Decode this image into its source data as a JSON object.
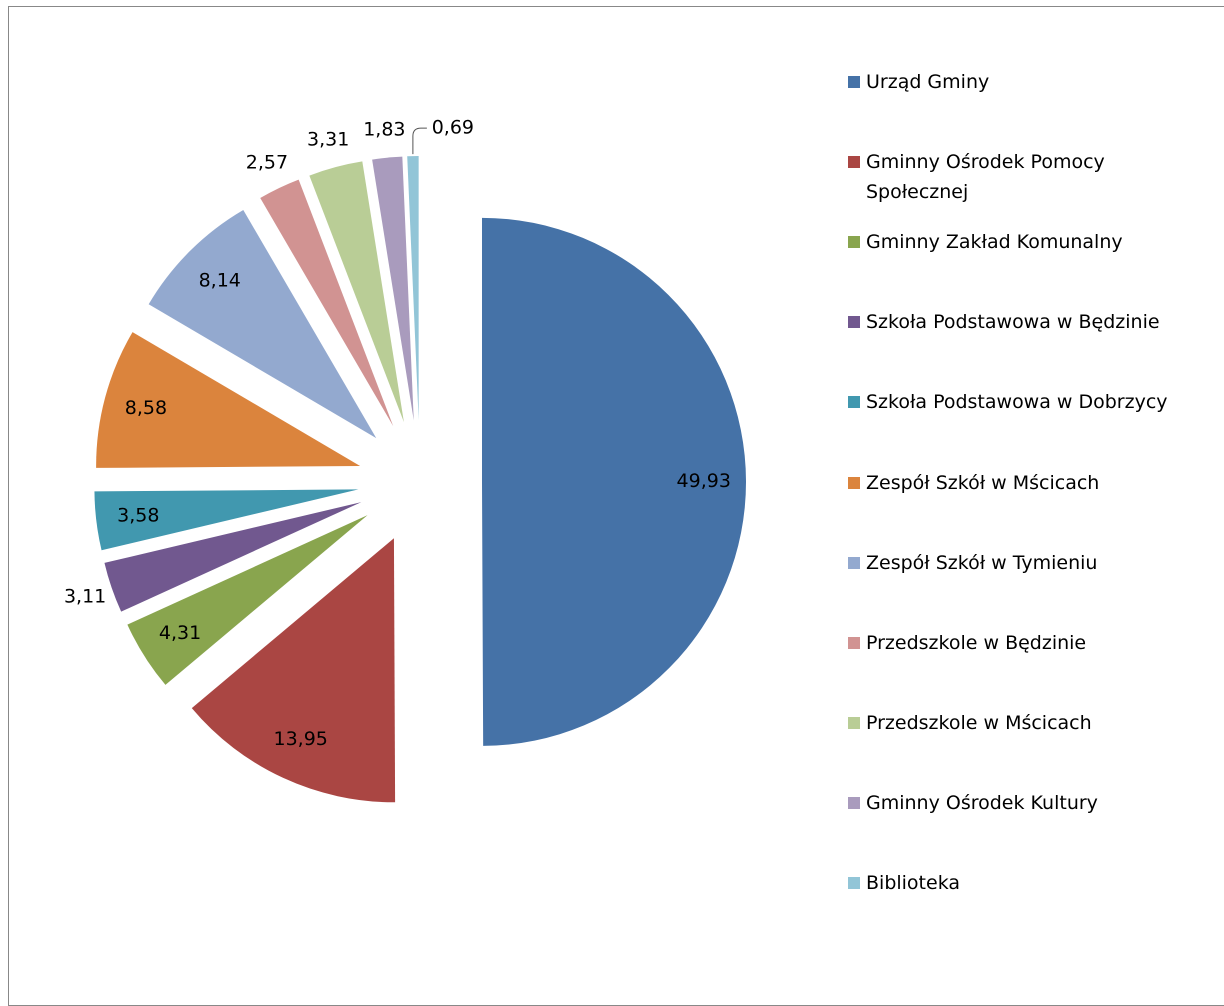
{
  "chart_data": {
    "type": "pie",
    "categories": [
      "Urząd Gminy",
      "Gminny Ośrodek Pomocy Społecznej",
      "Gminny Zakład Komunalny",
      "Szkoła Podstawowa w Będzinie",
      "Szkoła Podstawowa w Dobrzycy",
      "Zespół Szkół w Mścicach",
      "Zespół Szkół w Tymieniu",
      "Przedszkole w Będzinie",
      "Przedszkole w Mścicach",
      "Gminny Ośrodek Kultury",
      "Biblioteka"
    ],
    "values": [
      49.93,
      13.95,
      4.31,
      3.11,
      3.58,
      8.58,
      8.14,
      2.57,
      3.31,
      1.83,
      0.69
    ],
    "value_labels": [
      "49,93",
      "13,95",
      "4,31",
      "3,11",
      "3,58",
      "8,58",
      "8,14",
      "2,57",
      "3,31",
      "1,83",
      "0,69"
    ],
    "colors": [
      "#4572a7",
      "#aa4643",
      "#89a54e",
      "#71588f",
      "#4198af",
      "#db843d",
      "#93a9cf",
      "#d19392",
      "#b9cd96",
      "#a99bbd",
      "#92c5d7"
    ],
    "legend": "right"
  }
}
